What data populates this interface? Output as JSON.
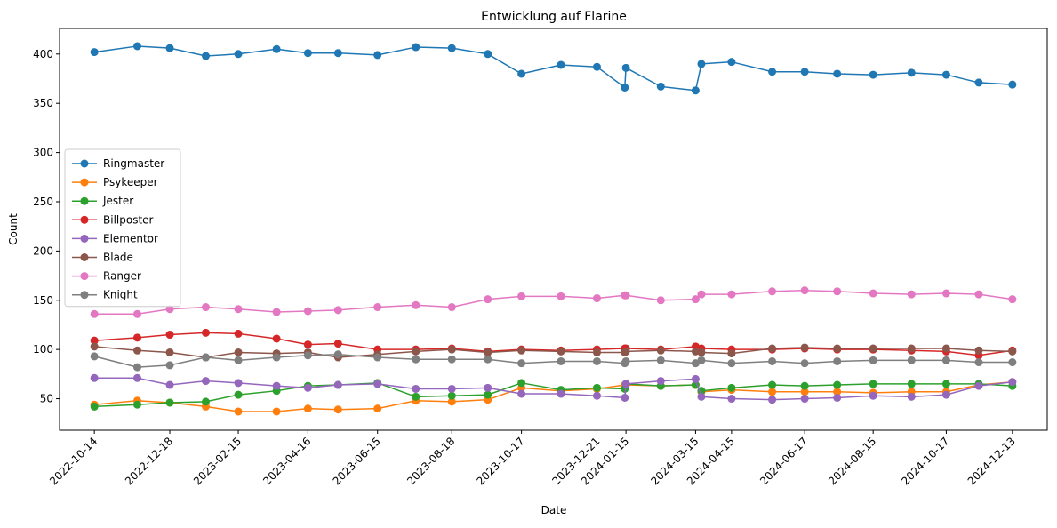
{
  "chart_data": {
    "type": "line",
    "title": "Entwicklung auf Flarine",
    "xlabel": "Date",
    "ylabel": "Count",
    "ylim": [
      18,
      426
    ],
    "xlim": [
      "2022-09-14",
      "2025-01-12"
    ],
    "yticks": [
      50,
      100,
      150,
      200,
      250,
      300,
      350,
      400
    ],
    "xticks": [
      "2022-10-14",
      "2022-12-18",
      "2023-02-15",
      "2023-04-16",
      "2023-06-15",
      "2023-08-18",
      "2023-10-17",
      "2023-12-21",
      "2024-01-15",
      "2024-03-15",
      "2024-04-15",
      "2024-06-17",
      "2024-08-15",
      "2024-10-17",
      "2024-12-13"
    ],
    "grid": false,
    "legend_position": "center-left",
    "x": [
      "2022-10-14",
      "2022-11-20",
      "2022-12-18",
      "2023-01-18",
      "2023-02-15",
      "2023-03-20",
      "2023-04-16",
      "2023-05-12",
      "2023-06-15",
      "2023-07-18",
      "2023-08-18",
      "2023-09-18",
      "2023-10-17",
      "2023-11-20",
      "2023-12-21",
      "2024-01-14",
      "2024-01-15",
      "2024-02-14",
      "2024-03-15",
      "2024-03-20",
      "2024-04-15",
      "2024-05-20",
      "2024-06-17",
      "2024-07-15",
      "2024-08-15",
      "2024-09-17",
      "2024-10-17",
      "2024-11-14",
      "2024-12-13"
    ],
    "series": [
      {
        "name": "Ringmaster",
        "color": "#1f77b4",
        "values": [
          402,
          408,
          406,
          398,
          400,
          405,
          401,
          401,
          399,
          407,
          406,
          400,
          380,
          389,
          387,
          366,
          386,
          367,
          363,
          390,
          392,
          382,
          382,
          380,
          379,
          381,
          379,
          371,
          369
        ]
      },
      {
        "name": "Psykeeper",
        "color": "#ff7f0e",
        "values": [
          44,
          48,
          46,
          42,
          37,
          37,
          40,
          39,
          40,
          48,
          47,
          49,
          61,
          58,
          60,
          64,
          64,
          63,
          64,
          57,
          59,
          57,
          57,
          57,
          56,
          57,
          57,
          64,
          67
        ]
      },
      {
        "name": "Jester",
        "color": "#2ca02c",
        "values": [
          42,
          44,
          46,
          47,
          54,
          58,
          63,
          64,
          66,
          52,
          53,
          54,
          66,
          59,
          61,
          60,
          65,
          63,
          64,
          58,
          61,
          64,
          63,
          64,
          65,
          65,
          65,
          65,
          63
        ]
      },
      {
        "name": "Billposter",
        "color": "#d62728",
        "values": [
          109,
          112,
          115,
          117,
          116,
          111,
          105,
          106,
          100,
          100,
          101,
          98,
          100,
          99,
          100,
          101,
          101,
          100,
          103,
          101,
          100,
          100,
          101,
          100,
          100,
          99,
          98,
          94,
          99
        ]
      },
      {
        "name": "Elementor",
        "color": "#9467bd",
        "values": [
          71,
          71,
          64,
          68,
          66,
          63,
          61,
          64,
          65,
          60,
          60,
          61,
          55,
          55,
          53,
          51,
          65,
          68,
          70,
          52,
          50,
          49,
          50,
          51,
          53,
          52,
          54,
          63,
          67
        ]
      },
      {
        "name": "Blade",
        "color": "#8c564b",
        "values": [
          103,
          99,
          97,
          92,
          97,
          96,
          97,
          92,
          95,
          98,
          100,
          97,
          99,
          98,
          97,
          97,
          98,
          99,
          98,
          97,
          96,
          101,
          102,
          101,
          101,
          101,
          101,
          99,
          98
        ]
      },
      {
        "name": "Ranger",
        "color": "#e377c2",
        "values": [
          136,
          136,
          141,
          143,
          141,
          138,
          139,
          140,
          143,
          145,
          143,
          151,
          154,
          154,
          152,
          155,
          155,
          150,
          151,
          156,
          156,
          159,
          160,
          159,
          157,
          156,
          157,
          156,
          151
        ]
      },
      {
        "name": "Knight",
        "color": "#7f7f7f",
        "values": [
          93,
          82,
          84,
          92,
          89,
          92,
          94,
          95,
          92,
          90,
          90,
          90,
          86,
          88,
          88,
          86,
          88,
          89,
          86,
          89,
          86,
          88,
          86,
          88,
          89,
          89,
          89,
          87,
          87
        ]
      }
    ]
  }
}
